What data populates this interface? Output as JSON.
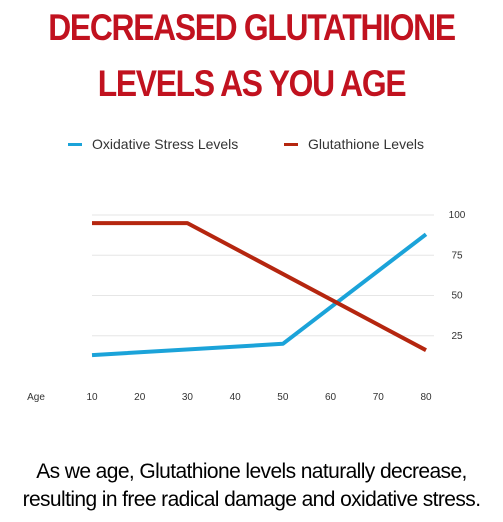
{
  "header": {
    "title_line1": "DECREASED GLUTATHIONE",
    "title_line2": "LEVELS AS YOU AGE"
  },
  "caption": {
    "line1": "As we age, Glutathione levels naturally decrease,",
    "line2": "resulting in free radical damage and oxidative stress."
  },
  "chart_data": {
    "type": "line",
    "title": "DECREASED GLUTATHIONE LEVELS AS YOU AGE",
    "xlabel": "Age",
    "ylabel": "",
    "x": [
      10,
      20,
      30,
      40,
      50,
      60,
      70,
      80
    ],
    "x_ticks": [
      "10",
      "20",
      "30",
      "40",
      "50",
      "60",
      "70",
      "80"
    ],
    "y_ticks": [
      "100",
      "75",
      "50",
      "25"
    ],
    "xlim": [
      10,
      80
    ],
    "ylim": [
      0,
      100
    ],
    "grid": true,
    "legend_position": "top",
    "series": [
      {
        "name": "Oxidative Stress Levels",
        "color": "#1ba3d9",
        "points": [
          [
            10,
            13
          ],
          [
            50,
            20
          ],
          [
            80,
            88
          ]
        ]
      },
      {
        "name": "Glutathione Levels",
        "color": "#b5260f",
        "points": [
          [
            10,
            95
          ],
          [
            30,
            95
          ],
          [
            80,
            16
          ]
        ]
      }
    ]
  }
}
